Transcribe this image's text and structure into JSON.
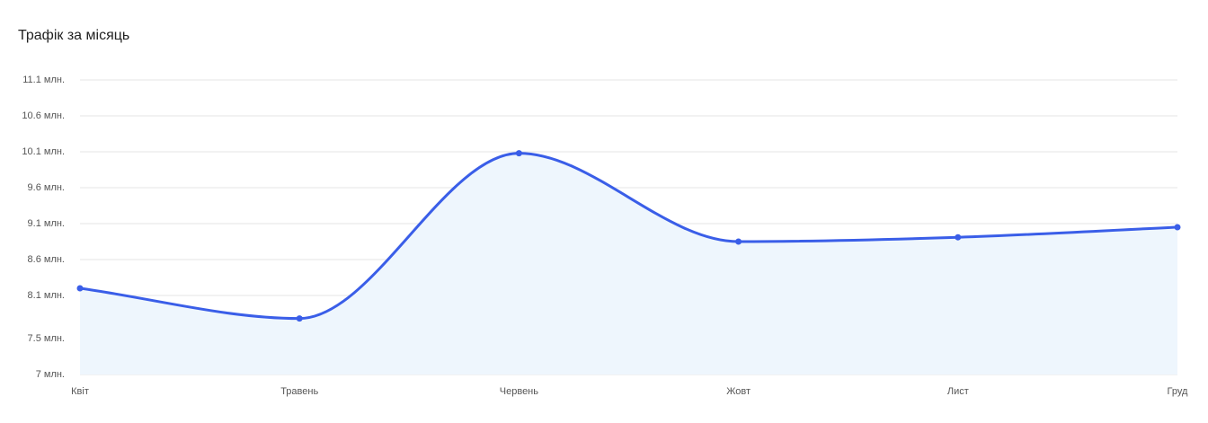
{
  "chart_data": {
    "type": "area",
    "title": "Трафік за місяць",
    "categories": [
      "Квіт",
      "Травень",
      "Червень",
      "Жовт",
      "Лист",
      "Груд"
    ],
    "values": [
      8.2,
      7.78,
      10.08,
      8.85,
      8.91,
      9.05
    ],
    "color": "#3a5ee8",
    "fill": "#eef6fd",
    "ylim": [
      7,
      11.1
    ],
    "yticks": [
      {
        "value": 7,
        "label": "7 млн."
      },
      {
        "value": 7.5,
        "label": "7.5 млн."
      },
      {
        "value": 8.1,
        "label": "8.1 млн."
      },
      {
        "value": 8.6,
        "label": "8.6 млн."
      },
      {
        "value": 9.1,
        "label": "9.1 млн."
      },
      {
        "value": 9.6,
        "label": "9.6 млн."
      },
      {
        "value": 10.1,
        "label": "10.1 млн."
      },
      {
        "value": 10.6,
        "label": "10.6 млн."
      },
      {
        "value": 11.1,
        "label": "11.1 млн."
      }
    ],
    "grid": true
  }
}
